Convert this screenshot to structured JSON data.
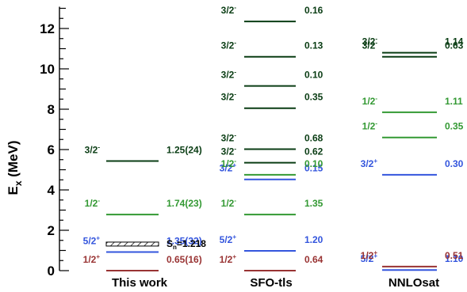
{
  "chart_data": {
    "type": "level-scheme",
    "ylabel": "E",
    "ylabel_sub": "x",
    "ylabel_unit": " (MeV)",
    "ylim": [
      0,
      13
    ],
    "yticks": [
      0,
      2,
      4,
      6,
      8,
      10,
      12
    ],
    "grid": false,
    "colors": {
      "half_minus": "#339933",
      "three_half_minus": "#0a3d14",
      "five_half_plus": "#3355dd",
      "half_plus": "#993333",
      "axis": "#000000"
    },
    "columns": [
      {
        "name": "This work",
        "levels": [
          {
            "energy": 0.0,
            "jp": "1/2",
            "parity": "+",
            "value": "0.65(16)",
            "color": "#993333"
          },
          {
            "energy": 0.92,
            "jp": "5/2",
            "parity": "+",
            "value": "1.35(32)",
            "color": "#3355dd"
          },
          {
            "energy": 2.78,
            "jp": "1/2",
            "parity": "-",
            "value": "1.74(23)",
            "color": "#339933"
          },
          {
            "energy": 5.43,
            "jp": "3/2",
            "parity": "-",
            "value": "1.25(24)",
            "color": "#0a3d14"
          }
        ],
        "threshold": {
          "energy": 1.218,
          "label": "S",
          "label_sub": "n",
          "label_rest": "=1.218"
        }
      },
      {
        "name": "SFO-tls",
        "levels": [
          {
            "energy": 0.0,
            "jp": "1/2",
            "parity": "+",
            "value": "0.64",
            "color": "#993333"
          },
          {
            "energy": 0.98,
            "jp": "5/2",
            "parity": "+",
            "value": "1.20",
            "color": "#3355dd"
          },
          {
            "energy": 2.78,
            "jp": "1/2",
            "parity": "-",
            "value": "1.35",
            "color": "#339933"
          },
          {
            "energy": 4.52,
            "jp": "3/2",
            "parity": "+",
            "value": "0.15",
            "color": "#3355dd"
          },
          {
            "energy": 4.75,
            "jp": "1/2",
            "parity": "-",
            "value": "0.10",
            "color": "#339933"
          },
          {
            "energy": 5.35,
            "jp": "3/2",
            "parity": "-",
            "value": "0.62",
            "color": "#0a3d14"
          },
          {
            "energy": 6.02,
            "jp": "3/2",
            "parity": "-",
            "value": "0.68",
            "color": "#0a3d14"
          },
          {
            "energy": 8.05,
            "jp": "3/2",
            "parity": "-",
            "value": "0.35",
            "color": "#0a3d14"
          },
          {
            "energy": 9.15,
            "jp": "3/2",
            "parity": "-",
            "value": "0.10",
            "color": "#0a3d14"
          },
          {
            "energy": 10.6,
            "jp": "3/2",
            "parity": "-",
            "value": "0.13",
            "color": "#0a3d14"
          },
          {
            "energy": 12.35,
            "jp": "3/2",
            "parity": "-",
            "value": "0.16",
            "color": "#0a3d14"
          }
        ]
      },
      {
        "name": "NNLOsat",
        "levels": [
          {
            "energy": 0.03,
            "jp": "5/2",
            "parity": "+",
            "value": "1.10",
            "color": "#3355dd"
          },
          {
            "energy": 0.2,
            "jp": "1/2",
            "parity": "+",
            "value": "0.51",
            "color": "#993333"
          },
          {
            "energy": 4.75,
            "jp": "3/2",
            "parity": "+",
            "value": "0.30",
            "color": "#3355dd"
          },
          {
            "energy": 6.6,
            "jp": "1/2",
            "parity": "-",
            "value": "0.35",
            "color": "#339933"
          },
          {
            "energy": 7.85,
            "jp": "1/2",
            "parity": "-",
            "value": "1.11",
            "color": "#339933"
          },
          {
            "energy": 10.6,
            "jp": "3/2",
            "parity": "-",
            "value": "0.63",
            "color": "#0a3d14"
          },
          {
            "energy": 10.8,
            "jp": "3/2",
            "parity": "-",
            "value": "1.14",
            "color": "#0a3d14"
          }
        ]
      }
    ]
  }
}
